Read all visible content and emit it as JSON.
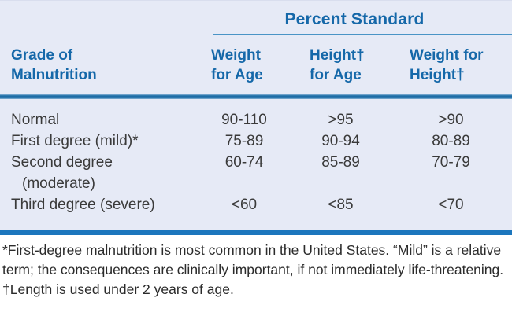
{
  "table": {
    "group_header": "Percent Standard",
    "columns": [
      {
        "line1": "Grade of",
        "line2": "Malnutrition"
      },
      {
        "line1": "Weight",
        "line2": "for Age"
      },
      {
        "line1": "Height†",
        "line2": "for Age"
      },
      {
        "line1": "Weight for",
        "line2": "Height†"
      }
    ],
    "rows": [
      {
        "label": "Normal",
        "label2": "",
        "values": [
          "90-110",
          ">95",
          ">90"
        ]
      },
      {
        "label": "First degree (mild)*",
        "label2": "",
        "values": [
          "75-89",
          "90-94",
          "80-89"
        ]
      },
      {
        "label": "Second degree",
        "label2": "(moderate)",
        "values": [
          "60-74",
          "85-89",
          "70-79"
        ]
      },
      {
        "label": "Third degree (severe)",
        "label2": "",
        "values": [
          "<60",
          "<85",
          "<70"
        ]
      }
    ]
  },
  "footnotes": {
    "asterisk": "*First-degree malnutrition is most common in the United States. “Mild” is a relative term; the consequences are clinically important, if not immediately life-threatening.",
    "dagger": "†Length is used under 2 years of age."
  },
  "colors": {
    "table_background": "#e6eaf6",
    "header_text_blue": "#1568a9",
    "rule_blue": "#1d6da6",
    "bottom_band_blue": "#1c76bd",
    "body_text": "#3a3a3a"
  },
  "chart_data": {
    "type": "table",
    "title": "Percent Standard",
    "column_headers": [
      "Grade of Malnutrition",
      "Weight for Age",
      "Height† for Age",
      "Weight for Height†"
    ],
    "rows": [
      [
        "Normal",
        "90-110",
        ">95",
        ">90"
      ],
      [
        "First degree (mild)*",
        "75-89",
        "90-94",
        "80-89"
      ],
      [
        "Second degree (moderate)",
        "60-74",
        "85-89",
        "70-79"
      ],
      [
        "Third degree (severe)",
        "<60",
        "<85",
        "<70"
      ]
    ],
    "notes": [
      "*First-degree malnutrition is most common in the United States. “Mild” is a relative term; the consequences are clinically important, if not immediately life-threatening.",
      "†Length is used under 2 years of age."
    ]
  }
}
